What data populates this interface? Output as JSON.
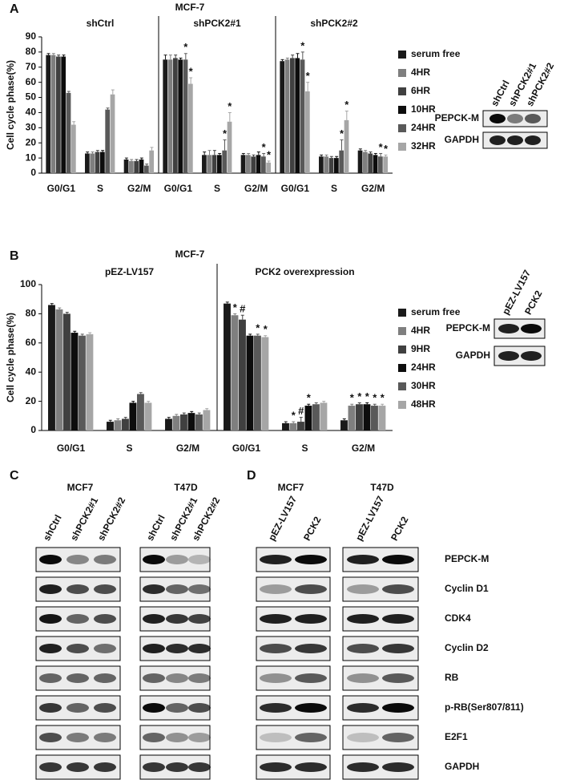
{
  "chart_data": [
    {
      "type": "bar",
      "panel": "A",
      "title": "MCF-7",
      "ylabel": "Cell cycle phase(%)",
      "ylim": [
        0,
        90
      ],
      "yticks": [
        0,
        10,
        20,
        30,
        40,
        50,
        60,
        70,
        80,
        90
      ],
      "groups": [
        "shCtrl",
        "shPCK2#1",
        "shPCK2#2"
      ],
      "categories": [
        "G0/G1",
        "S",
        "G2/M",
        "G0/G1",
        "S",
        "G2/M",
        "G0/G1",
        "S",
        "G2/M"
      ],
      "series": [
        {
          "name": "serum free",
          "color": "#1a1a1a",
          "values": [
            78,
            13,
            9,
            75,
            12,
            12,
            74,
            11,
            15
          ],
          "errors": [
            1,
            1,
            1,
            3,
            2,
            1,
            1,
            1,
            1
          ],
          "annotations": [
            null,
            null,
            null,
            null,
            null,
            null,
            null,
            null,
            null
          ]
        },
        {
          "name": "4HR",
          "color": "#7f7f7f",
          "values": [
            78,
            13,
            8,
            75,
            12,
            12,
            75,
            11,
            14
          ],
          "errors": [
            1,
            1,
            1,
            3,
            3,
            1,
            1,
            1,
            1
          ],
          "annotations": [
            null,
            null,
            null,
            null,
            null,
            null,
            null,
            null,
            null
          ]
        },
        {
          "name": "6HR",
          "color": "#404040",
          "values": [
            77,
            14,
            8,
            76,
            12,
            11,
            76,
            10,
            13
          ],
          "errors": [
            1,
            1,
            1,
            2,
            3,
            1,
            2,
            1,
            1
          ],
          "annotations": [
            null,
            null,
            null,
            null,
            null,
            null,
            null,
            null,
            null
          ]
        },
        {
          "name": "10HR",
          "color": "#0d0d0d",
          "values": [
            77,
            14,
            9,
            75,
            12,
            12,
            76,
            10,
            12
          ],
          "errors": [
            1,
            1,
            1,
            1,
            1,
            2,
            3,
            1,
            1
          ],
          "annotations": [
            null,
            null,
            null,
            null,
            null,
            null,
            null,
            null,
            null
          ]
        },
        {
          "name": "24HR",
          "color": "#595959",
          "values": [
            53,
            42,
            5,
            75,
            15,
            11,
            75,
            15,
            11
          ],
          "errors": [
            1,
            1,
            1,
            4,
            7,
            2,
            5,
            7,
            2
          ],
          "annotations": [
            null,
            null,
            null,
            "*",
            "*",
            "*",
            "*",
            "*",
            "*"
          ]
        },
        {
          "name": "32HR",
          "color": "#a6a6a6",
          "values": [
            32,
            52,
            15,
            59,
            34,
            7,
            54,
            35,
            11
          ],
          "errors": [
            2,
            3,
            2,
            4,
            6,
            1,
            6,
            6,
            1
          ],
          "annotations": [
            null,
            null,
            null,
            "*",
            "*",
            "*",
            "*",
            "*",
            "*"
          ]
        }
      ]
    },
    {
      "type": "bar",
      "panel": "B",
      "title": "MCF-7",
      "ylabel": "Cell cycle phase(%)",
      "ylim": [
        0,
        100
      ],
      "yticks": [
        0,
        20,
        40,
        60,
        80,
        100
      ],
      "groups": [
        "pEZ-LV157",
        "PCK2 overexpression"
      ],
      "categories": [
        "G0/G1",
        "S",
        "G2/M",
        "G0/G1",
        "S",
        "G2/M"
      ],
      "series": [
        {
          "name": "serum free",
          "color": "#1a1a1a",
          "values": [
            86,
            6,
            8,
            87,
            5,
            7
          ],
          "errors": [
            1,
            1,
            1,
            1,
            1,
            1
          ],
          "annotations": [
            null,
            null,
            null,
            null,
            null,
            null
          ]
        },
        {
          "name": "4HR",
          "color": "#7f7f7f",
          "values": [
            83,
            7,
            10,
            79,
            5,
            17
          ],
          "errors": [
            1,
            1,
            1,
            1,
            1,
            1
          ],
          "annotations": [
            null,
            null,
            null,
            "*",
            "*",
            "*"
          ]
        },
        {
          "name": "9HR",
          "color": "#404040",
          "values": [
            80,
            8,
            11,
            76,
            6,
            18
          ],
          "errors": [
            1,
            1,
            1,
            3,
            3,
            1
          ],
          "annotations": [
            null,
            null,
            null,
            "#",
            "#",
            "*"
          ]
        },
        {
          "name": "24HR",
          "color": "#0d0d0d",
          "values": [
            67,
            19,
            12,
            65,
            17,
            18
          ],
          "errors": [
            1,
            1,
            1,
            1,
            1,
            1
          ],
          "annotations": [
            null,
            null,
            null,
            null,
            "*",
            "*"
          ]
        },
        {
          "name": "30HR",
          "color": "#595959",
          "values": [
            65,
            25,
            11,
            65,
            18,
            17
          ],
          "errors": [
            1,
            1,
            1,
            1,
            1,
            1
          ],
          "annotations": [
            null,
            null,
            null,
            "*",
            null,
            "*"
          ]
        },
        {
          "name": "48HR",
          "color": "#a6a6a6",
          "values": [
            66,
            19,
            14,
            64,
            19,
            17
          ],
          "errors": [
            1,
            1,
            1,
            1,
            1,
            1
          ],
          "annotations": [
            null,
            null,
            null,
            "*",
            null,
            "*"
          ]
        }
      ]
    }
  ],
  "insets": [
    {
      "lanes": [
        "shCtrl",
        "shPCK2#1",
        "shPCK2#2"
      ],
      "rows": [
        "PEPCK-M",
        "GAPDH"
      ]
    },
    {
      "lanes": [
        "pEZ-LV157",
        "PCK2"
      ],
      "rows": [
        "PEPCK-M",
        "GAPDH"
      ]
    }
  ],
  "panel_c": {
    "label": "C",
    "cells": [
      {
        "name": "MCF7",
        "lanes": [
          "shCtrl",
          "shPCK2#1",
          "shPCK2#2"
        ]
      },
      {
        "name": "T47D",
        "lanes": [
          "shCtrl",
          "shPCK2#1",
          "shPCK2#2"
        ]
      }
    ]
  },
  "panel_d": {
    "label": "D",
    "cells": [
      {
        "name": "MCF7",
        "lanes": [
          "pEZ-LV157",
          "PCK2"
        ]
      },
      {
        "name": "T47D",
        "lanes": [
          "pEZ-LV157",
          "PCK2"
        ]
      }
    ],
    "rows": [
      "PEPCK-M",
      "Cyclin D1",
      "CDK4",
      "Cyclin D2",
      "RB",
      "p-RB(Ser807/811)",
      "E2F1",
      "GAPDH"
    ]
  }
}
